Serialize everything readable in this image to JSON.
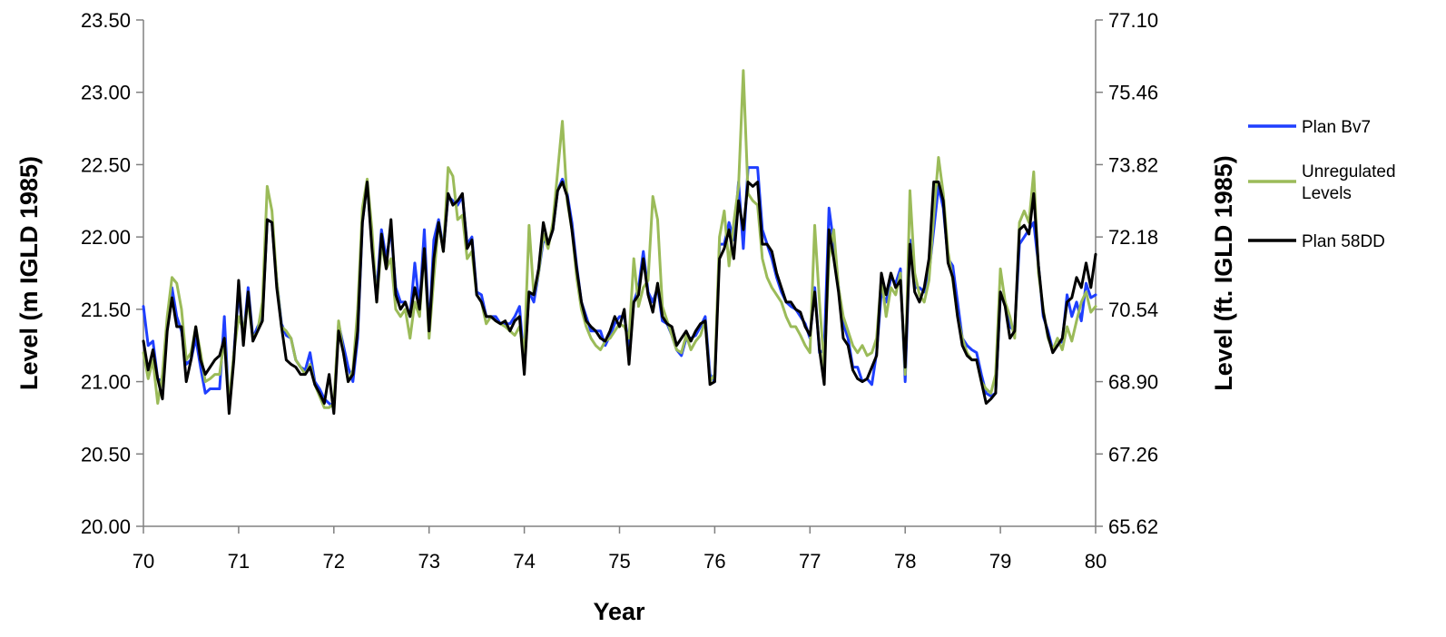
{
  "chart_data": {
    "type": "line",
    "title": "",
    "xlabel": "Year",
    "ylabel": "Level (m IGLD 1985)",
    "y2label": "Level (ft. IGLD 1985)",
    "xlim": [
      70,
      80
    ],
    "ylim": [
      20.0,
      23.5
    ],
    "y2lim": [
      65.62,
      77.1
    ],
    "grid": false,
    "legend_position": "right",
    "x_ticks": [
      "70",
      "71",
      "72",
      "73",
      "74",
      "75",
      "76",
      "77",
      "78",
      "79",
      "80"
    ],
    "y_ticks": [
      "20.00",
      "20.50",
      "21.00",
      "21.50",
      "22.00",
      "22.50",
      "23.00",
      "23.50"
    ],
    "y2_ticks": [
      "65.62",
      "67.26",
      "68.90",
      "70.54",
      "72.18",
      "73.82",
      "75.46",
      "77.10"
    ],
    "x": [
      70.0,
      70.05,
      70.1,
      70.15,
      70.2,
      70.25,
      70.3,
      70.35,
      70.4,
      70.45,
      70.5,
      70.55,
      70.6,
      70.65,
      70.7,
      70.75,
      70.8,
      70.85,
      70.9,
      70.95,
      71.0,
      71.05,
      71.1,
      71.15,
      71.2,
      71.25,
      71.3,
      71.35,
      71.4,
      71.45,
      71.5,
      71.55,
      71.6,
      71.65,
      71.7,
      71.75,
      71.8,
      71.85,
      71.9,
      71.95,
      72.0,
      72.05,
      72.1,
      72.15,
      72.2,
      72.25,
      72.3,
      72.35,
      72.4,
      72.45,
      72.5,
      72.55,
      72.6,
      72.65,
      72.7,
      72.75,
      72.8,
      72.85,
      72.9,
      72.95,
      73.0,
      73.05,
      73.1,
      73.15,
      73.2,
      73.25,
      73.3,
      73.35,
      73.4,
      73.45,
      73.5,
      73.55,
      73.6,
      73.65,
      73.7,
      73.75,
      73.8,
      73.85,
      73.9,
      73.95,
      74.0,
      74.05,
      74.1,
      74.15,
      74.2,
      74.25,
      74.3,
      74.35,
      74.4,
      74.45,
      74.5,
      74.55,
      74.6,
      74.65,
      74.7,
      74.75,
      74.8,
      74.85,
      74.9,
      74.95,
      75.0,
      75.05,
      75.1,
      75.15,
      75.2,
      75.25,
      75.3,
      75.35,
      75.4,
      75.45,
      75.5,
      75.55,
      75.6,
      75.65,
      75.7,
      75.75,
      75.8,
      75.85,
      75.9,
      75.95,
      76.0,
      76.05,
      76.1,
      76.15,
      76.2,
      76.25,
      76.3,
      76.35,
      76.4,
      76.45,
      76.5,
      76.55,
      76.6,
      76.65,
      76.7,
      76.75,
      76.8,
      76.85,
      76.9,
      76.95,
      77.0,
      77.05,
      77.1,
      77.15,
      77.2,
      77.25,
      77.3,
      77.35,
      77.4,
      77.45,
      77.5,
      77.55,
      77.6,
      77.65,
      77.7,
      77.75,
      77.8,
      77.85,
      77.9,
      77.95,
      78.0,
      78.05,
      78.1,
      78.15,
      78.2,
      78.25,
      78.3,
      78.35,
      78.4,
      78.45,
      78.5,
      78.55,
      78.6,
      78.65,
      78.7,
      78.75,
      78.8,
      78.85,
      78.9,
      78.95,
      79.0,
      79.05,
      79.1,
      79.15,
      79.2,
      79.25,
      79.3,
      79.35,
      79.4,
      79.45,
      79.5,
      79.55,
      79.6,
      79.65,
      79.7,
      79.75,
      79.8,
      79.85,
      79.9,
      79.95,
      80.0
    ],
    "series": [
      {
        "name": "Plan Bv7",
        "color": "#1f3fff",
        "values": [
          21.52,
          21.25,
          21.28,
          21.02,
          21.0,
          21.38,
          21.65,
          21.45,
          21.35,
          21.12,
          21.15,
          21.3,
          21.1,
          20.92,
          20.95,
          20.95,
          20.95,
          21.45,
          20.8,
          21.2,
          21.62,
          21.3,
          21.65,
          21.3,
          21.38,
          21.45,
          22.12,
          22.1,
          21.7,
          21.4,
          21.32,
          21.3,
          21.15,
          21.1,
          21.08,
          21.2,
          21.0,
          20.95,
          20.88,
          20.85,
          20.82,
          21.4,
          21.25,
          21.1,
          21.0,
          21.3,
          22.1,
          22.38,
          21.95,
          21.62,
          22.05,
          21.85,
          22.05,
          21.65,
          21.55,
          21.55,
          21.45,
          21.82,
          21.52,
          22.05,
          21.35,
          21.98,
          22.12,
          21.92,
          22.28,
          22.25,
          22.22,
          22.28,
          21.95,
          22.0,
          21.62,
          21.6,
          21.45,
          21.45,
          21.45,
          21.4,
          21.4,
          21.4,
          21.45,
          21.52,
          21.1,
          21.62,
          21.55,
          21.75,
          21.98,
          21.95,
          22.05,
          22.32,
          22.4,
          22.3,
          22.1,
          21.8,
          21.55,
          21.45,
          21.35,
          21.35,
          21.35,
          21.25,
          21.32,
          21.4,
          21.45,
          21.45,
          21.25,
          21.55,
          21.65,
          21.9,
          21.62,
          21.55,
          21.65,
          21.42,
          21.4,
          21.32,
          21.22,
          21.18,
          21.3,
          21.3,
          21.32,
          21.38,
          21.45,
          21.05,
          21.0,
          21.95,
          21.95,
          22.1,
          21.98,
          22.38,
          21.92,
          22.48,
          22.48,
          22.48,
          22.05,
          21.95,
          21.85,
          21.72,
          21.62,
          21.55,
          21.52,
          21.5,
          21.45,
          21.4,
          21.3,
          21.65,
          21.2,
          21.22,
          22.2,
          21.95,
          21.65,
          21.4,
          21.3,
          21.1,
          21.1,
          21.0,
          21.02,
          20.98,
          21.2,
          21.62,
          21.55,
          21.72,
          21.68,
          21.78,
          21.0,
          21.98,
          21.65,
          21.65,
          21.62,
          21.75,
          22.05,
          22.35,
          22.2,
          21.85,
          21.8,
          21.55,
          21.3,
          21.25,
          21.22,
          21.2,
          21.05,
          20.92,
          20.9,
          20.92,
          21.6,
          21.55,
          21.38,
          21.35,
          21.95,
          22.0,
          22.05,
          22.1,
          21.8,
          21.45,
          21.35,
          21.22,
          21.25,
          21.28,
          21.6,
          21.45,
          21.55,
          21.42,
          21.68,
          21.58,
          21.6
        ]
      },
      {
        "name": "Unregulated Levels",
        "color": "#9bbb59",
        "values": [
          21.2,
          21.02,
          21.15,
          20.85,
          21.05,
          21.45,
          21.72,
          21.68,
          21.5,
          21.15,
          21.2,
          21.38,
          21.2,
          21.0,
          21.02,
          21.05,
          21.05,
          21.3,
          20.85,
          21.2,
          21.45,
          21.35,
          21.55,
          21.3,
          21.35,
          21.55,
          22.35,
          22.18,
          21.7,
          21.38,
          21.35,
          21.3,
          21.15,
          21.1,
          21.05,
          21.12,
          20.98,
          20.9,
          20.82,
          20.82,
          20.85,
          21.42,
          21.2,
          21.0,
          21.08,
          21.5,
          22.2,
          22.4,
          22.05,
          21.55,
          21.95,
          21.78,
          21.85,
          21.5,
          21.45,
          21.5,
          21.3,
          21.55,
          21.45,
          21.92,
          21.3,
          21.72,
          22.1,
          21.9,
          22.48,
          22.42,
          22.12,
          22.15,
          21.85,
          21.9,
          21.6,
          21.55,
          21.4,
          21.45,
          21.42,
          21.4,
          21.38,
          21.35,
          21.32,
          21.38,
          21.2,
          22.08,
          21.6,
          21.75,
          22.02,
          21.92,
          22.1,
          22.45,
          22.8,
          22.25,
          22.05,
          21.72,
          21.5,
          21.38,
          21.3,
          21.25,
          21.22,
          21.28,
          21.3,
          21.35,
          21.4,
          21.38,
          21.3,
          21.85,
          21.52,
          21.65,
          21.7,
          22.28,
          22.12,
          21.52,
          21.42,
          21.32,
          21.22,
          21.2,
          21.32,
          21.22,
          21.28,
          21.32,
          21.42,
          21.0,
          21.05,
          22.0,
          22.18,
          21.8,
          22.1,
          22.35,
          23.15,
          22.3,
          22.25,
          22.22,
          21.85,
          21.72,
          21.65,
          21.6,
          21.55,
          21.45,
          21.38,
          21.38,
          21.32,
          21.25,
          21.2,
          22.08,
          21.55,
          21.1,
          21.85,
          22.05,
          21.65,
          21.45,
          21.35,
          21.25,
          21.2,
          21.25,
          21.18,
          21.2,
          21.3,
          21.72,
          21.45,
          21.65,
          21.6,
          21.75,
          21.05,
          22.32,
          21.75,
          21.6,
          21.55,
          21.7,
          22.15,
          22.55,
          22.3,
          21.9,
          21.7,
          21.45,
          21.3,
          21.2,
          21.15,
          21.15,
          21.0,
          20.95,
          20.92,
          21.05,
          21.78,
          21.55,
          21.45,
          21.3,
          22.1,
          22.18,
          22.1,
          22.45,
          21.75,
          21.5,
          21.3,
          21.22,
          21.3,
          21.22,
          21.38,
          21.28,
          21.42,
          21.55,
          21.62,
          21.48,
          21.52
        ]
      },
      {
        "name": "Plan 58DD",
        "color": "#000000",
        "values": [
          21.28,
          21.08,
          21.22,
          21.02,
          20.88,
          21.35,
          21.58,
          21.38,
          21.38,
          21.0,
          21.15,
          21.38,
          21.15,
          21.05,
          21.1,
          21.15,
          21.18,
          21.3,
          20.78,
          21.15,
          21.7,
          21.25,
          21.62,
          21.28,
          21.35,
          21.42,
          22.12,
          22.1,
          21.65,
          21.38,
          21.15,
          21.12,
          21.1,
          21.05,
          21.05,
          21.1,
          20.98,
          20.92,
          20.85,
          21.05,
          20.78,
          21.35,
          21.2,
          21.0,
          21.05,
          21.35,
          22.1,
          22.38,
          21.92,
          21.55,
          22.02,
          21.78,
          22.12,
          21.6,
          21.5,
          21.55,
          21.45,
          21.65,
          21.5,
          21.92,
          21.35,
          21.85,
          22.1,
          21.9,
          22.3,
          22.22,
          22.25,
          22.3,
          21.92,
          21.98,
          21.6,
          21.55,
          21.45,
          21.45,
          21.42,
          21.4,
          21.42,
          21.35,
          21.42,
          21.45,
          21.05,
          21.62,
          21.6,
          21.78,
          22.1,
          21.95,
          22.05,
          22.32,
          22.38,
          22.28,
          22.05,
          21.78,
          21.55,
          21.42,
          21.38,
          21.35,
          21.3,
          21.28,
          21.35,
          21.45,
          21.38,
          21.5,
          21.12,
          21.55,
          21.6,
          21.85,
          21.6,
          21.48,
          21.68,
          21.45,
          21.4,
          21.38,
          21.25,
          21.3,
          21.35,
          21.28,
          21.35,
          21.4,
          21.42,
          20.98,
          21.0,
          21.85,
          21.92,
          22.05,
          21.85,
          22.25,
          22.05,
          22.38,
          22.35,
          22.38,
          21.95,
          21.95,
          21.9,
          21.75,
          21.65,
          21.55,
          21.55,
          21.5,
          21.48,
          21.38,
          21.32,
          21.62,
          21.22,
          20.98,
          22.05,
          21.85,
          21.62,
          21.3,
          21.25,
          21.08,
          21.02,
          21.0,
          21.02,
          21.1,
          21.18,
          21.75,
          21.6,
          21.75,
          21.65,
          21.7,
          21.1,
          21.95,
          21.62,
          21.55,
          21.65,
          21.85,
          22.38,
          22.38,
          22.25,
          21.82,
          21.72,
          21.45,
          21.25,
          21.18,
          21.15,
          21.15,
          21.0,
          20.85,
          20.88,
          20.92,
          21.62,
          21.52,
          21.3,
          21.35,
          22.05,
          22.08,
          22.02,
          22.3,
          21.8,
          21.48,
          21.32,
          21.2,
          21.25,
          21.3,
          21.55,
          21.58,
          21.72,
          21.65,
          21.82,
          21.65,
          21.88
        ]
      }
    ]
  }
}
